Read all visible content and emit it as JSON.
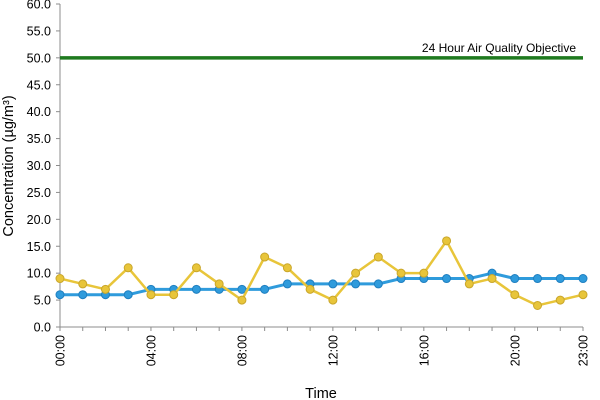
{
  "chart_data": {
    "type": "line",
    "xlabel": "Time",
    "ylabel": "Concentration (µg/m³)",
    "ylim": [
      0,
      60
    ],
    "yticks": [
      "0.0",
      "5.0",
      "10.0",
      "15.0",
      "20.0",
      "25.0",
      "30.0",
      "35.0",
      "40.0",
      "45.0",
      "50.0",
      "55.0",
      "60.0"
    ],
    "x": [
      0,
      1,
      2,
      3,
      4,
      5,
      6,
      7,
      8,
      9,
      10,
      11,
      12,
      13,
      14,
      15,
      16,
      17,
      18,
      19,
      20,
      21,
      22,
      23
    ],
    "xticks": [
      {
        "hour": 0,
        "label": "00:00"
      },
      {
        "hour": 4,
        "label": "04:00"
      },
      {
        "hour": 8,
        "label": "08:00"
      },
      {
        "hour": 12,
        "label": "12:00"
      },
      {
        "hour": 16,
        "label": "16:00"
      },
      {
        "hour": 20,
        "label": "20:00"
      },
      {
        "hour": 23,
        "label": "23:00"
      }
    ],
    "grid": false,
    "legend": "none",
    "series": [
      {
        "color": "#2f9bdc",
        "marker": "circle",
        "values": [
          6,
          6,
          6,
          6,
          7,
          7,
          7,
          7,
          7,
          7,
          8,
          8,
          8,
          8,
          8,
          9,
          9,
          9,
          9,
          10,
          9,
          9,
          9,
          9
        ]
      },
      {
        "color": "#e8c53a",
        "marker": "circle",
        "values": [
          9,
          8,
          7,
          11,
          6,
          6,
          11,
          8,
          5,
          13,
          11,
          7,
          5,
          10,
          13,
          10,
          10,
          16,
          8,
          9,
          6,
          4,
          5,
          6
        ]
      }
    ],
    "reference_line": {
      "value": 50,
      "label": "24 Hour Air Quality Objective",
      "color": "#1f7a1f"
    }
  }
}
